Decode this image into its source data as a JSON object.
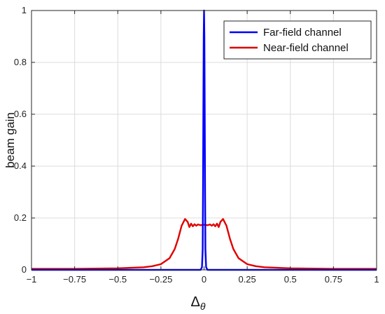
{
  "chart_data": {
    "type": "line",
    "title": "",
    "xlabel": "Δ",
    "xlabel_sub": "θ",
    "ylabel": "beam gain",
    "xlim": [
      -1,
      1
    ],
    "ylim": [
      0,
      1
    ],
    "xticks": [
      -1,
      -0.75,
      -0.5,
      -0.25,
      0,
      0.25,
      0.5,
      0.75,
      1
    ],
    "xtick_labels": [
      "−1",
      "−0.75",
      "−0.5",
      "−0.25",
      "0",
      "0.25",
      "0.5",
      "0.75",
      "1"
    ],
    "yticks": [
      0,
      0.2,
      0.4,
      0.6,
      0.8,
      1
    ],
    "ytick_labels": [
      "0",
      "0.2",
      "0.4",
      "0.6",
      "0.8",
      "1"
    ],
    "grid": true,
    "legend_position": "top-right",
    "series": [
      {
        "name": "Far-field channel",
        "color": "#0000ff",
        "x": [
          -1,
          -0.02,
          -0.012,
          -0.008,
          -0.006,
          -0.004,
          -0.002,
          0,
          0.002,
          0.004,
          0.006,
          0.008,
          0.012,
          0.02,
          1
        ],
        "y": [
          0,
          0,
          0.01,
          0.08,
          0.3,
          0.62,
          0.9,
          1.0,
          0.9,
          0.62,
          0.3,
          0.08,
          0.01,
          0,
          0
        ]
      },
      {
        "name": "Near-field channel",
        "color": "#e00000",
        "x": [
          -1,
          -0.75,
          -0.5,
          -0.35,
          -0.3,
          -0.25,
          -0.2,
          -0.17,
          -0.15,
          -0.13,
          -0.11,
          -0.095,
          -0.085,
          -0.075,
          -0.065,
          -0.055,
          -0.045,
          -0.035,
          -0.02,
          0,
          0.02,
          0.035,
          0.045,
          0.055,
          0.065,
          0.075,
          0.085,
          0.095,
          0.11,
          0.13,
          0.15,
          0.17,
          0.2,
          0.25,
          0.3,
          0.35,
          0.5,
          0.75,
          1
        ],
        "y": [
          0.004,
          0.004,
          0.006,
          0.01,
          0.014,
          0.022,
          0.045,
          0.08,
          0.12,
          0.17,
          0.196,
          0.185,
          0.165,
          0.178,
          0.168,
          0.176,
          0.17,
          0.175,
          0.172,
          0.174,
          0.172,
          0.175,
          0.17,
          0.176,
          0.168,
          0.178,
          0.165,
          0.185,
          0.196,
          0.17,
          0.12,
          0.08,
          0.045,
          0.022,
          0.014,
          0.01,
          0.006,
          0.004,
          0.004
        ]
      }
    ]
  }
}
